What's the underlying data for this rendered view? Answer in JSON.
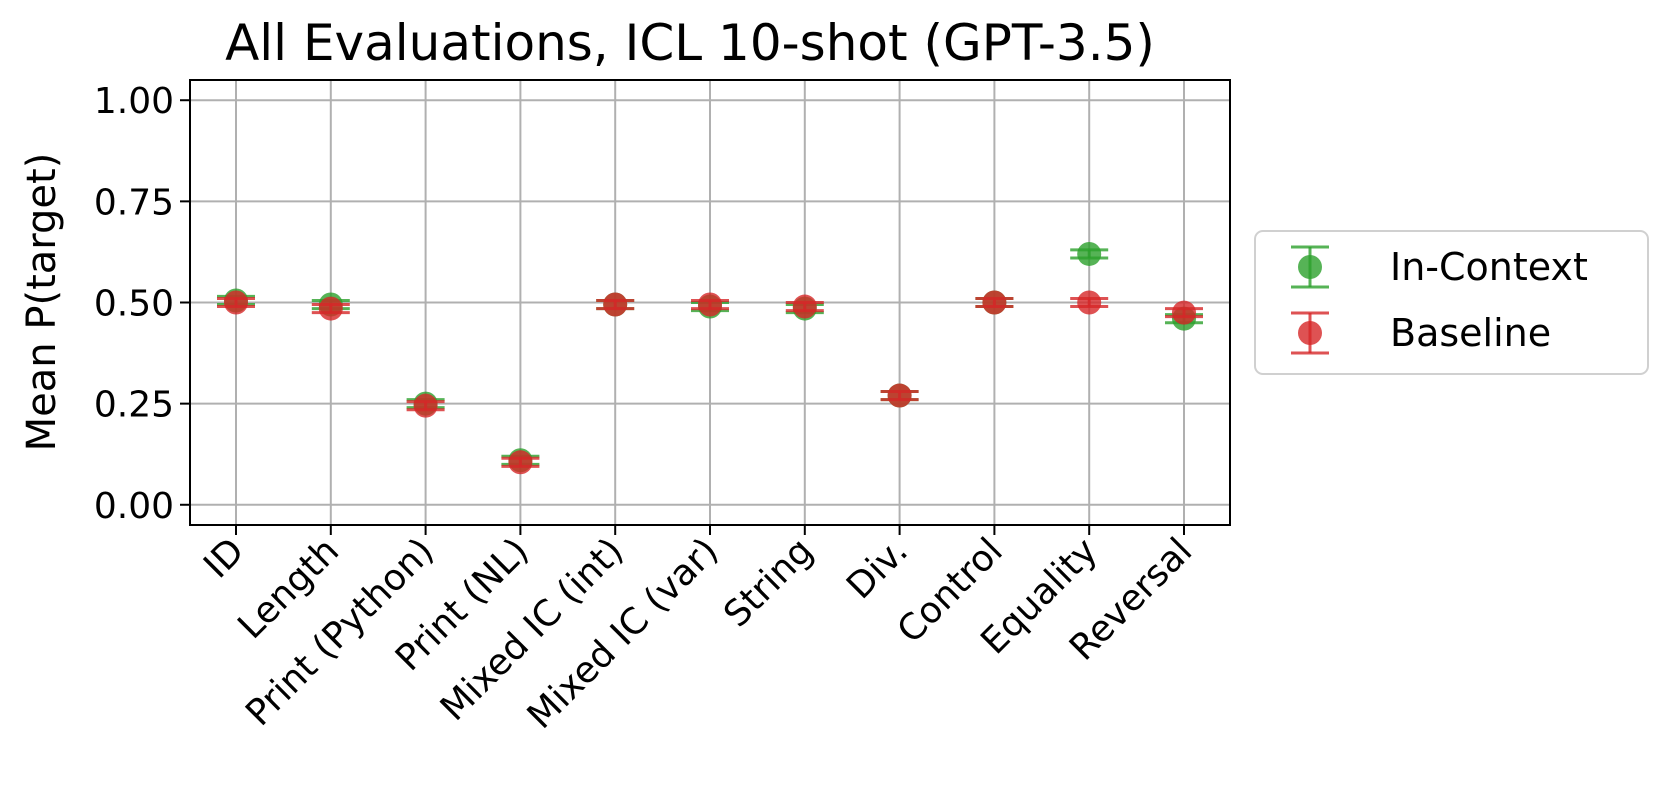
{
  "chart_data": {
    "type": "scatter",
    "title": "All Evaluations, ICL 10-shot (GPT-3.5)",
    "xlabel": "",
    "ylabel": "Mean P(target)",
    "ylim": [
      -0.05,
      1.05
    ],
    "yticks": [
      "0.00",
      "0.25",
      "0.50",
      "0.75",
      "1.00"
    ],
    "grid": true,
    "legend_position": "right",
    "categories": [
      "ID",
      "Length",
      "Print (Python)",
      "Print (NL)",
      "Mixed IC (int)",
      "Mixed IC (var)",
      "String",
      "Div.",
      "Control",
      "Equality",
      "Reversal"
    ],
    "series": [
      {
        "name": "In-Context",
        "color": "#2ca02c",
        "values": [
          0.505,
          0.495,
          0.25,
          0.11,
          0.495,
          0.49,
          0.485,
          0.27,
          0.5,
          0.62,
          0.46
        ],
        "errors": [
          0.01,
          0.01,
          0.01,
          0.01,
          0.01,
          0.01,
          0.01,
          0.01,
          0.01,
          0.01,
          0.01
        ]
      },
      {
        "name": "Baseline",
        "color": "#d62728",
        "values": [
          0.5,
          0.485,
          0.245,
          0.105,
          0.495,
          0.495,
          0.49,
          0.27,
          0.5,
          0.5,
          0.475
        ],
        "errors": [
          0.01,
          0.01,
          0.01,
          0.01,
          0.01,
          0.01,
          0.01,
          0.01,
          0.01,
          0.01,
          0.01
        ]
      }
    ]
  }
}
